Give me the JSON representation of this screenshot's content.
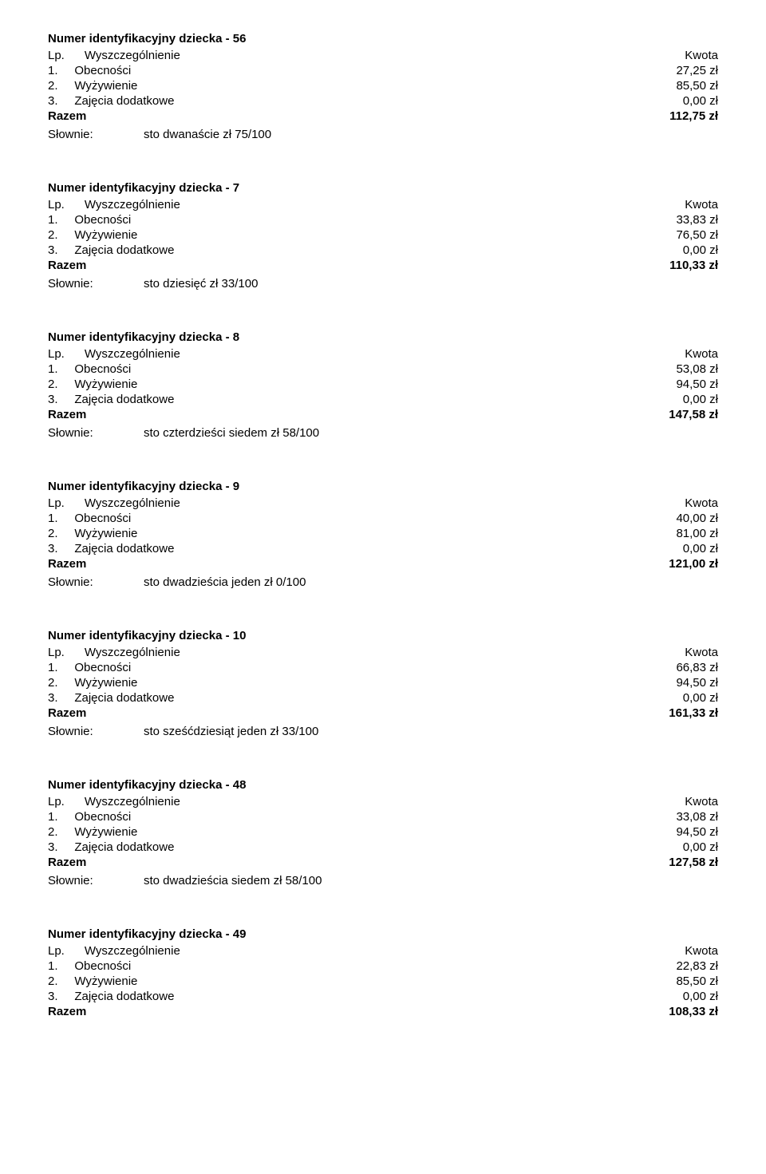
{
  "labels": {
    "title_prefix": "Numer identyfikacyjny dziecka - ",
    "lp": "Lp.",
    "wysz": "Wyszczególnienie",
    "kwota": "Kwota",
    "obecnosci": "Obecności",
    "wyzywienie": "Wyżywienie",
    "zajecia": "Zajęcia dodatkowe",
    "razem": "Razem",
    "slownie": "Słownie:"
  },
  "blocks": [
    {
      "id": "56",
      "obecnosci": "27,25 zł",
      "wyzywienie": "85,50 zł",
      "zajecia": "0,00 zł",
      "razem": "112,75 zł",
      "slownie": "sto  dwanaście  zł 75/100"
    },
    {
      "id": "7",
      "obecnosci": "33,83 zł",
      "wyzywienie": "76,50 zł",
      "zajecia": "0,00 zł",
      "razem": "110,33 zł",
      "slownie": "sto  dziesięć  zł 33/100"
    },
    {
      "id": "8",
      "obecnosci": "53,08 zł",
      "wyzywienie": "94,50 zł",
      "zajecia": "0,00 zł",
      "razem": "147,58 zł",
      "slownie": "sto  czterdzieści  siedem  zł 58/100"
    },
    {
      "id": "9",
      "obecnosci": "40,00 zł",
      "wyzywienie": "81,00 zł",
      "zajecia": "0,00 zł",
      "razem": "121,00 zł",
      "slownie": "sto  dwadzieścia  jeden  zł 0/100"
    },
    {
      "id": "10",
      "obecnosci": "66,83 zł",
      "wyzywienie": "94,50 zł",
      "zajecia": "0,00 zł",
      "razem": "161,33 zł",
      "slownie": "sto  sześćdziesiąt  jeden  zł 33/100"
    },
    {
      "id": "48",
      "obecnosci": "33,08 zł",
      "wyzywienie": "94,50 zł",
      "zajecia": "0,00 zł",
      "razem": "127,58 zł",
      "slownie": "sto  dwadzieścia  siedem  zł 58/100"
    },
    {
      "id": "49",
      "obecnosci": "22,83 zł",
      "wyzywienie": "85,50 zł",
      "zajecia": "0,00 zł",
      "razem": "108,33 zł",
      "slownie": ""
    }
  ]
}
